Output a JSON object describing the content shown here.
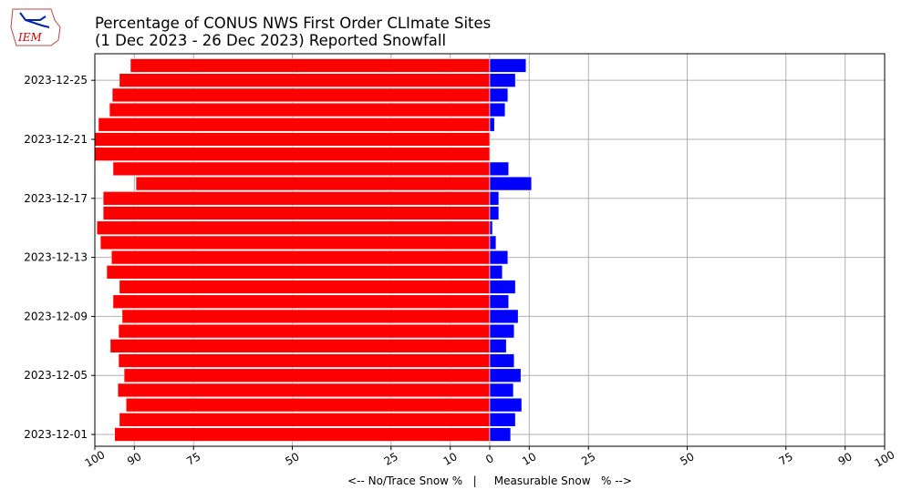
{
  "chart_data": {
    "type": "diverging-bar",
    "logo_text": "IEM",
    "title": "Percentage of CONUS NWS First Order CLImate Sites",
    "subtitle": "(1 Dec 2023 - 26 Dec 2023) Reported Snowfall",
    "xlabel": "<-- No/Trace Snow %   |     Measurable Snow   % -->",
    "categories": [
      "2023-12-01",
      null,
      null,
      null,
      "2023-12-05",
      null,
      null,
      null,
      "2023-12-09",
      null,
      null,
      null,
      "2023-12-13",
      null,
      null,
      null,
      "2023-12-17",
      null,
      null,
      null,
      "2023-12-21",
      null,
      null,
      null,
      "2023-12-25",
      null
    ],
    "series": [
      {
        "color": "#ff0000",
        "values": [
          -95.0,
          -93.8,
          -92.1,
          -94.2,
          -92.6,
          -94.0,
          -96.1,
          -94.0,
          -93.1,
          -95.4,
          -93.8,
          -97.0,
          -95.8,
          -98.6,
          -99.5,
          -97.9,
          -97.9,
          -89.6,
          -95.4,
          -100,
          -100,
          -99.1,
          -96.3,
          -95.6,
          -93.8,
          -91.0
        ]
      },
      {
        "color": "#0000ff",
        "values": [
          5.3,
          6.5,
          8.1,
          6.0,
          7.9,
          6.2,
          4.2,
          6.2,
          7.2,
          4.8,
          6.5,
          3.2,
          4.6,
          1.6,
          0.7,
          2.3,
          2.3,
          10.6,
          4.8,
          0,
          0,
          1.2,
          3.9,
          4.6,
          6.5,
          9.2
        ]
      }
    ],
    "xlim": [
      -100,
      100
    ],
    "xticks": [
      {
        "value": -100,
        "label": "100"
      },
      {
        "value": -90,
        "label": "90"
      },
      {
        "value": -75,
        "label": "75"
      },
      {
        "value": -50,
        "label": "50"
      },
      {
        "value": -25,
        "label": "25"
      },
      {
        "value": -10,
        "label": "10"
      },
      0,
      10,
      25,
      50,
      75,
      90,
      100
    ],
    "grid": true
  }
}
